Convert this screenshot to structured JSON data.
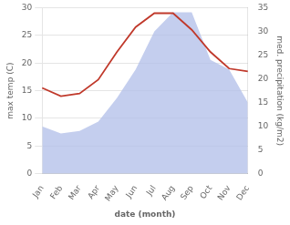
{
  "chart_data": {
    "type": "line",
    "categories": [
      "Jan",
      "Feb",
      "Mar",
      "Apr",
      "May",
      "Jun",
      "Jul",
      "Aug",
      "Sep",
      "Oct",
      "Nov",
      "Dec"
    ],
    "xlabel": "date (month)",
    "ylabel": "max temp (C)",
    "y2label": "med. precipitation (kg/m2)",
    "series": [
      {
        "type": "area",
        "axis": "y2",
        "color": "#b0bee8",
        "values": [
          10.0,
          8.5,
          9.0,
          11.0,
          16.0,
          22.0,
          30.0,
          34.0,
          34.0,
          24.0,
          22.0,
          15.0
        ]
      },
      {
        "type": "line",
        "color": "#c0392b",
        "values": [
          15.5,
          14.0,
          14.5,
          17.0,
          22.0,
          26.5,
          29.0,
          29.0,
          26.0,
          22.0,
          19.0,
          18.5
        ]
      }
    ],
    "ylim": [
      0,
      30
    ],
    "yticks": [
      0,
      5,
      10,
      15,
      20,
      25,
      30
    ],
    "y2lim": [
      0,
      35
    ],
    "y2ticks": [
      0,
      5,
      10,
      15,
      20,
      25,
      30,
      35
    ],
    "grid": true
  }
}
